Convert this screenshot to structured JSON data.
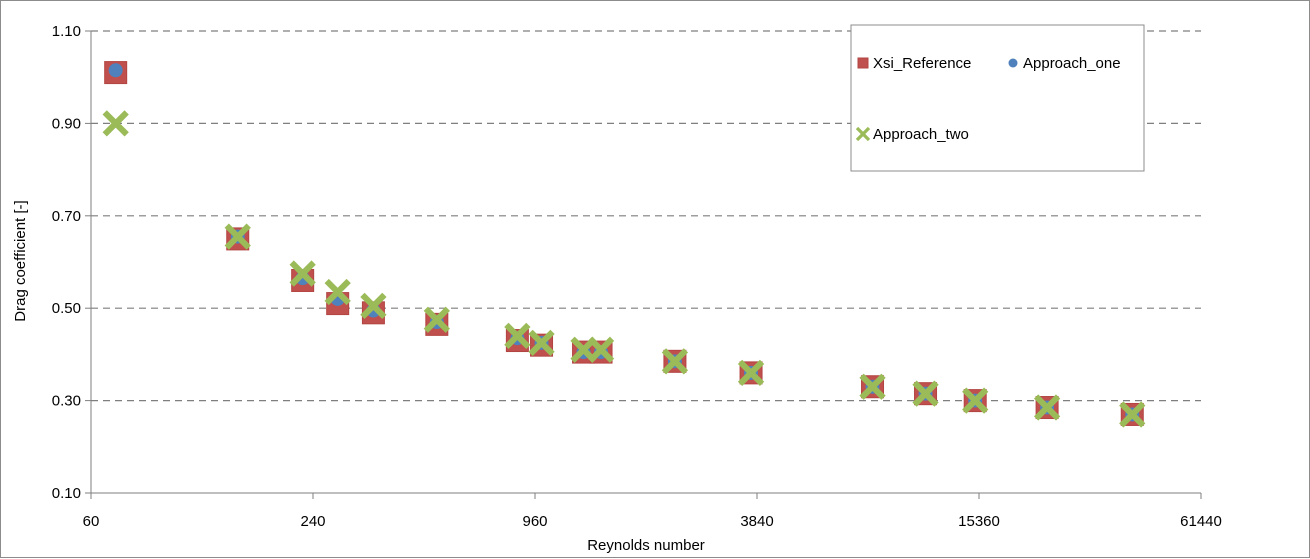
{
  "chart_data": {
    "type": "scatter",
    "title": "",
    "xlabel": "Reynolds number",
    "ylabel": "Drag coefficient [-]",
    "x_scale": "log2",
    "xlim": [
      60,
      61440
    ],
    "ylim": [
      0.1,
      1.1
    ],
    "x_ticks": [
      "60",
      "240",
      "960",
      "3840",
      "15360",
      "61440"
    ],
    "y_ticks": [
      "0.10",
      "0.30",
      "0.50",
      "0.70",
      "0.90",
      "1.10"
    ],
    "grid": "horizontal dashed",
    "legend_position": "top-right",
    "series": [
      {
        "name": "Xsi_Reference",
        "marker": "square",
        "color": "#c0504d",
        "points": [
          [
            70,
            1.01
          ],
          [
            150,
            0.65
          ],
          [
            225,
            0.56
          ],
          [
            280,
            0.51
          ],
          [
            350,
            0.49
          ],
          [
            520,
            0.465
          ],
          [
            860,
            0.43
          ],
          [
            1000,
            0.42
          ],
          [
            1300,
            0.405
          ],
          [
            1450,
            0.405
          ],
          [
            2300,
            0.385
          ],
          [
            3700,
            0.36
          ],
          [
            7900,
            0.33
          ],
          [
            11000,
            0.315
          ],
          [
            15000,
            0.3
          ],
          [
            23500,
            0.285
          ],
          [
            40000,
            0.27
          ]
        ]
      },
      {
        "name": "Approach_one",
        "marker": "circle",
        "color": "#4f81bd",
        "points": [
          [
            70,
            1.015
          ],
          [
            150,
            0.655
          ],
          [
            225,
            0.565
          ],
          [
            280,
            0.52
          ],
          [
            350,
            0.495
          ],
          [
            520,
            0.47
          ],
          [
            860,
            0.435
          ],
          [
            1000,
            0.425
          ],
          [
            1300,
            0.405
          ],
          [
            1450,
            0.405
          ],
          [
            2300,
            0.385
          ],
          [
            3700,
            0.36
          ],
          [
            7900,
            0.33
          ],
          [
            11000,
            0.315
          ],
          [
            15000,
            0.3
          ],
          [
            23500,
            0.285
          ],
          [
            40000,
            0.27
          ]
        ]
      },
      {
        "name": "Approach_two",
        "marker": "cross",
        "color": "#9bbb59",
        "points": [
          [
            70,
            0.9
          ],
          [
            150,
            0.655
          ],
          [
            225,
            0.575
          ],
          [
            280,
            0.535
          ],
          [
            350,
            0.505
          ],
          [
            520,
            0.475
          ],
          [
            860,
            0.44
          ],
          [
            1000,
            0.425
          ],
          [
            1300,
            0.41
          ],
          [
            1450,
            0.41
          ],
          [
            2300,
            0.385
          ],
          [
            3700,
            0.36
          ],
          [
            7900,
            0.33
          ],
          [
            11000,
            0.315
          ],
          [
            15000,
            0.3
          ],
          [
            23500,
            0.285
          ],
          [
            40000,
            0.27
          ]
        ]
      }
    ]
  }
}
